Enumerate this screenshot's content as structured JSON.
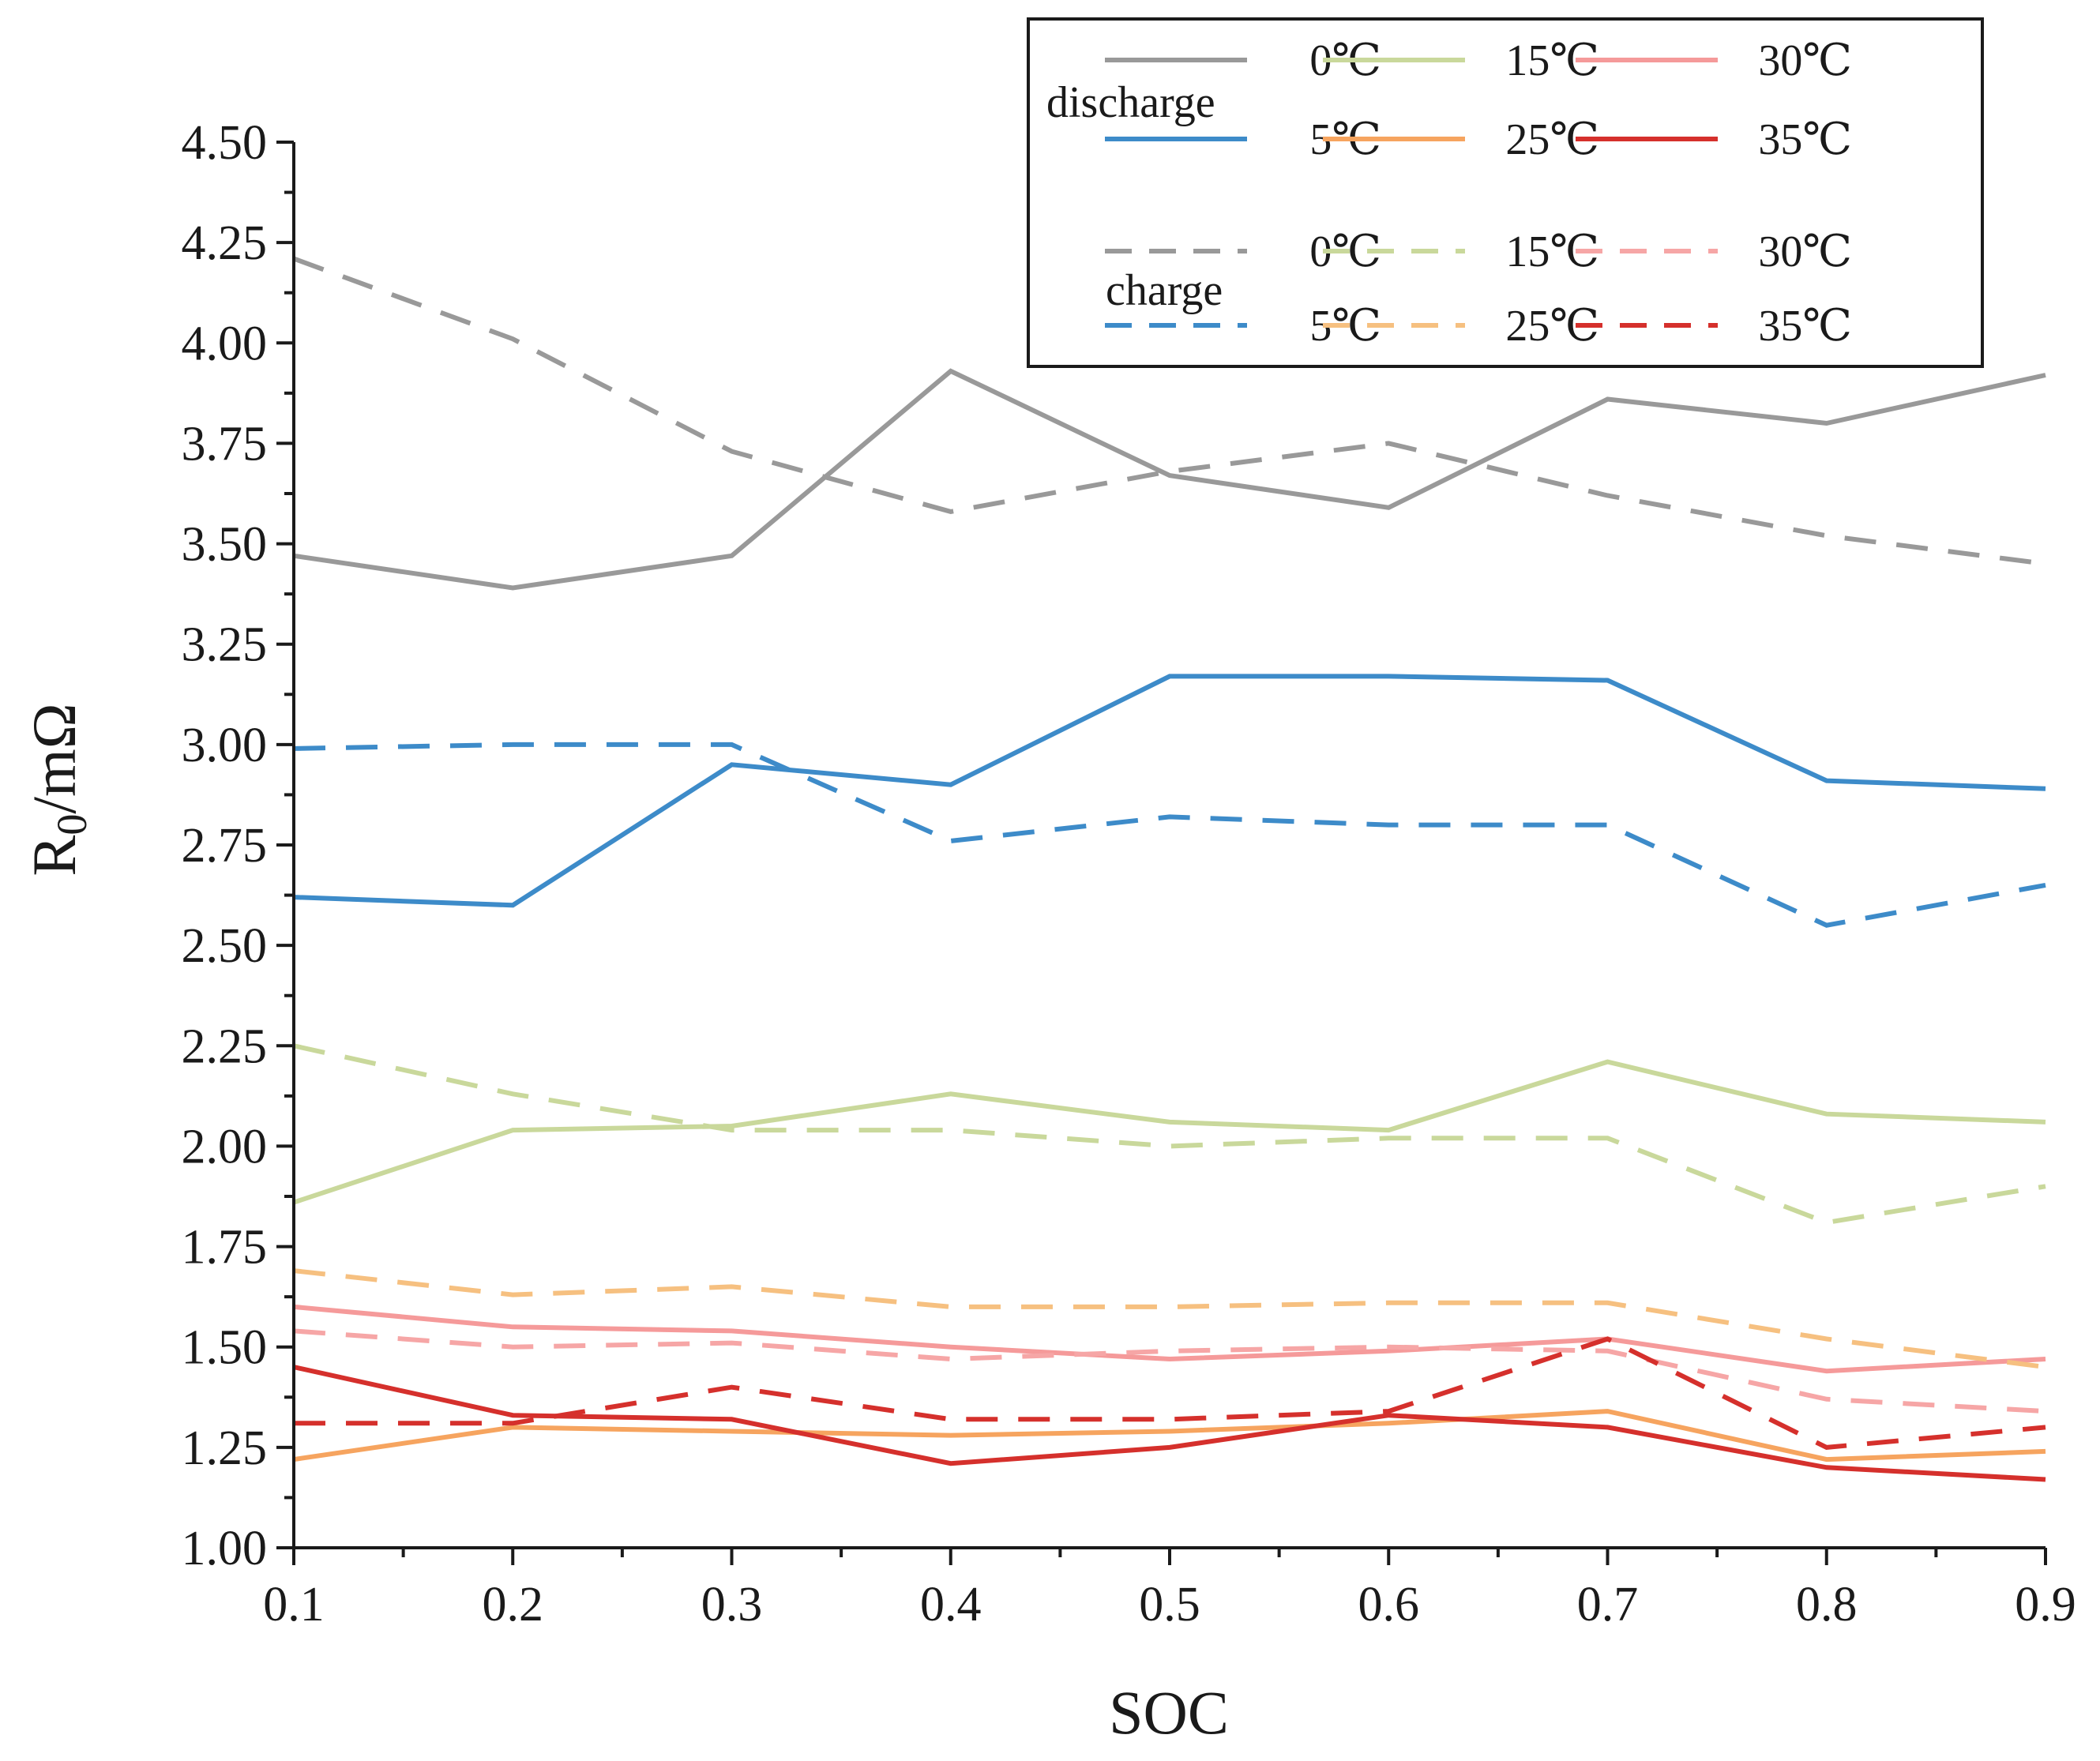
{
  "chart_data": {
    "type": "line",
    "xlabel": "SOC",
    "ylabel_main": "R",
    "ylabel_sub": "0",
    "ylabel_unit": "/mΩ",
    "xlim": [
      0.1,
      0.9
    ],
    "ylim": [
      1.0,
      4.5
    ],
    "x": [
      0.1,
      0.2,
      0.3,
      0.4,
      0.5,
      0.6,
      0.7,
      0.8,
      0.9
    ],
    "x_tick_labels": [
      "0.1",
      "0.2",
      "0.3",
      "0.4",
      "0.5",
      "0.6",
      "0.7",
      "0.8",
      "0.9"
    ],
    "y_ticks": [
      1.0,
      1.25,
      1.5,
      1.75,
      2.0,
      2.25,
      2.5,
      2.75,
      3.0,
      3.25,
      3.5,
      3.75,
      4.0,
      4.25,
      4.5
    ],
    "y_tick_labels": [
      "1.00",
      "1.25",
      "1.50",
      "1.75",
      "2.00",
      "2.25",
      "2.50",
      "2.75",
      "3.00",
      "3.25",
      "3.50",
      "3.75",
      "4.00",
      "4.25",
      "4.50"
    ],
    "grid": false,
    "legend_position": "top-right",
    "legend_groups": [
      "discharge",
      "charge"
    ],
    "series": [
      {
        "group": "discharge",
        "name": "0℃",
        "color": "#999999",
        "style": "solid",
        "values": [
          3.47,
          3.39,
          3.47,
          3.93,
          3.67,
          3.59,
          3.86,
          3.8,
          3.92
        ]
      },
      {
        "group": "discharge",
        "name": "5℃",
        "color": "#3d8bc9",
        "style": "solid",
        "values": [
          2.62,
          2.6,
          2.95,
          2.9,
          3.17,
          3.17,
          3.16,
          2.91,
          2.89
        ]
      },
      {
        "group": "discharge",
        "name": "15℃",
        "color": "#c9d89b",
        "style": "solid",
        "values": [
          1.86,
          2.04,
          2.05,
          2.13,
          2.06,
          2.04,
          2.21,
          2.08,
          2.06
        ]
      },
      {
        "group": "discharge",
        "name": "25℃",
        "color": "#f6a45f",
        "style": "solid",
        "values": [
          1.22,
          1.3,
          1.29,
          1.28,
          1.29,
          1.31,
          1.34,
          1.22,
          1.24
        ]
      },
      {
        "group": "discharge",
        "name": "30℃",
        "color": "#f59a9a",
        "style": "solid",
        "values": [
          1.6,
          1.55,
          1.54,
          1.5,
          1.47,
          1.49,
          1.52,
          1.44,
          1.47
        ]
      },
      {
        "group": "discharge",
        "name": "35℃",
        "color": "#d5302c",
        "style": "solid",
        "values": [
          1.45,
          1.33,
          1.32,
          1.21,
          1.25,
          1.33,
          1.3,
          1.2,
          1.17
        ]
      },
      {
        "group": "charge",
        "name": "0℃",
        "color": "#999999",
        "style": "dashed",
        "values": [
          4.21,
          4.01,
          3.73,
          3.58,
          3.68,
          3.75,
          3.62,
          3.52,
          3.45
        ]
      },
      {
        "group": "charge",
        "name": "5℃",
        "color": "#3d8bc9",
        "style": "dashed",
        "values": [
          2.99,
          3.0,
          3.0,
          2.76,
          2.82,
          2.8,
          2.8,
          2.55,
          2.65
        ]
      },
      {
        "group": "charge",
        "name": "15℃",
        "color": "#c9d89b",
        "style": "dashed",
        "values": [
          2.25,
          2.13,
          2.04,
          2.04,
          2.0,
          2.02,
          2.02,
          1.81,
          1.9
        ]
      },
      {
        "group": "charge",
        "name": "25℃",
        "color": "#f6c080",
        "style": "dashed",
        "values": [
          1.69,
          1.63,
          1.65,
          1.6,
          1.6,
          1.61,
          1.61,
          1.52,
          1.45
        ]
      },
      {
        "group": "charge",
        "name": "30℃",
        "color": "#f6a6a6",
        "style": "dashed",
        "values": [
          1.54,
          1.5,
          1.51,
          1.47,
          1.49,
          1.5,
          1.49,
          1.37,
          1.34
        ]
      },
      {
        "group": "charge",
        "name": "35℃",
        "color": "#d5302c",
        "style": "dashed",
        "values": [
          1.31,
          1.31,
          1.4,
          1.32,
          1.32,
          1.34,
          1.52,
          1.25,
          1.3
        ]
      }
    ]
  }
}
